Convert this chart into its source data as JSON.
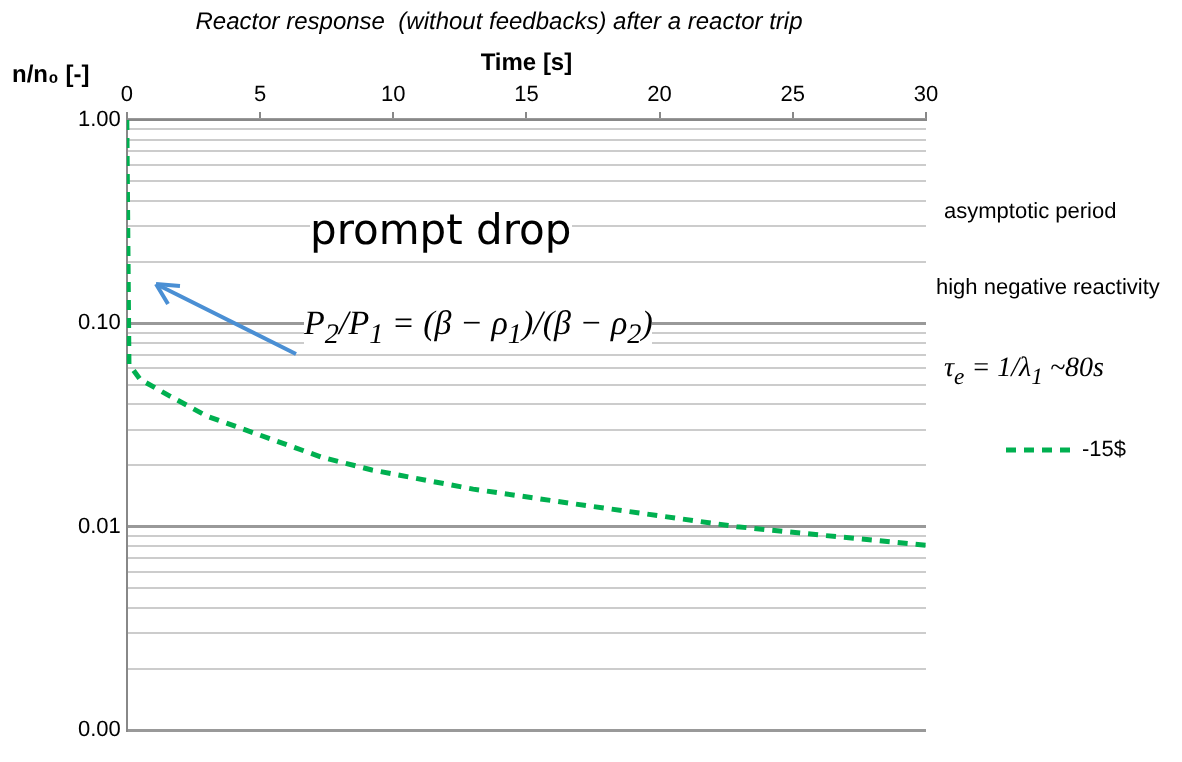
{
  "chart_data": {
    "type": "line",
    "title": "Reactor response  (without feedbacks) after a reactor trip",
    "xlabel": "Time [s]",
    "ylabel": "n/n₀ [-]",
    "log": "y",
    "grid": "y",
    "legend": "right",
    "marker": "none",
    "line_style": "dashed",
    "xlim": [
      0,
      30
    ],
    "xticks": [
      0,
      5,
      10,
      15,
      20,
      25,
      30
    ],
    "ylim": [
      0.001,
      1
    ],
    "yticks": [
      {
        "value": 0.001,
        "label": "0.00"
      },
      {
        "value": 0.002,
        "label": null
      },
      {
        "value": 0.003,
        "label": null
      },
      {
        "value": 0.004,
        "label": null
      },
      {
        "value": 0.005,
        "label": null
      },
      {
        "value": 0.006,
        "label": null
      },
      {
        "value": 0.007,
        "label": null
      },
      {
        "value": 0.008,
        "label": null
      },
      {
        "value": 0.009,
        "label": null
      },
      {
        "value": 0.01,
        "label": "0.01"
      },
      {
        "value": 0.02,
        "label": null
      },
      {
        "value": 0.03,
        "label": null
      },
      {
        "value": 0.04,
        "label": null
      },
      {
        "value": 0.05,
        "label": null
      },
      {
        "value": 0.06,
        "label": null
      },
      {
        "value": 0.07,
        "label": null
      },
      {
        "value": 0.08,
        "label": null
      },
      {
        "value": 0.09,
        "label": null
      },
      {
        "value": 0.1,
        "label": "0.10"
      },
      {
        "value": 0.2,
        "label": null
      },
      {
        "value": 0.3,
        "label": null
      },
      {
        "value": 0.4,
        "label": null
      },
      {
        "value": 0.5,
        "label": null
      },
      {
        "value": 0.6,
        "label": null
      },
      {
        "value": 0.7,
        "label": null
      },
      {
        "value": 0.8,
        "label": null
      },
      {
        "value": 0.9,
        "label": null
      },
      {
        "value": 1,
        "label": "1.00"
      }
    ],
    "series": [
      {
        "name": "-15$",
        "color": "#00b050",
        "x": [
          0,
          0.08,
          0.5,
          1.6,
          3,
          5.4,
          7.3,
          9.2,
          13,
          16.7,
          20,
          22.9,
          26,
          30
        ],
        "values": [
          1,
          0.063,
          0.053,
          0.044,
          0.035,
          0.027,
          0.022,
          0.019,
          0.0153,
          0.013,
          0.0113,
          0.01,
          0.0091,
          0.0081
        ]
      }
    ],
    "annotations": [
      "prompt drop",
      "P$_{2}$/P$_{1}$ = (β − ρ$_{1}$)/(β − ρ$_{2}$)",
      "asymptotic period",
      "high negative reactivity",
      "τ$_{e}$ = 1/λ$_{1}$ ~80s"
    ]
  }
}
